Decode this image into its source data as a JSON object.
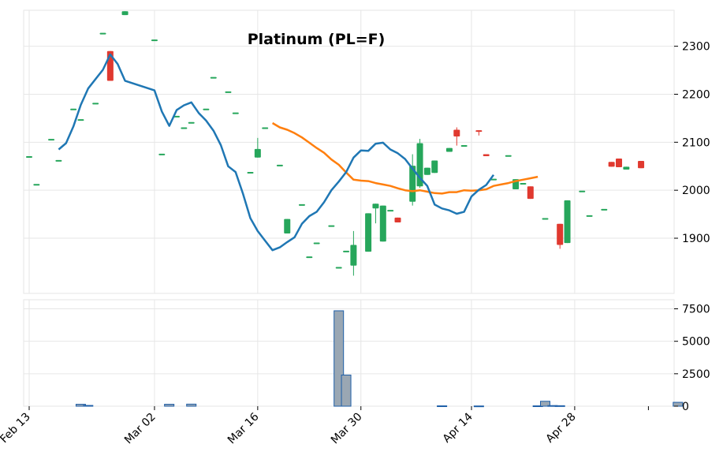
{
  "chart_data": {
    "type": "candlestick",
    "title": "Platinum (PL=F)",
    "x_dates": [
      "Feb 13",
      "Feb 14",
      "Feb 15",
      "Feb 16",
      "Feb 17",
      "Feb 18",
      "Feb 19",
      "Feb 20",
      "Feb 21",
      "Feb 22",
      "Feb 23",
      "Feb 24",
      "Feb 25",
      "Feb 26",
      "Feb 27",
      "Feb 28",
      "Mar 01",
      "Mar 02",
      "Mar 03",
      "Mar 04",
      "Mar 05",
      "Mar 06",
      "Mar 07",
      "Mar 08",
      "Mar 09",
      "Mar 10",
      "Mar 11",
      "Mar 12",
      "Mar 13",
      "Mar 14",
      "Mar 15",
      "Mar 16",
      "Mar 17",
      "Mar 18",
      "Mar 19",
      "Mar 20",
      "Mar 21",
      "Mar 22",
      "Mar 23",
      "Mar 24",
      "Mar 25",
      "Mar 26",
      "Mar 27",
      "Mar 28",
      "Mar 29",
      "Mar 30",
      "Mar 31",
      "Apr 01",
      "Apr 02",
      "Apr 03",
      "Apr 04",
      "Apr 05",
      "Apr 06",
      "Apr 07",
      "Apr 08",
      "Apr 09",
      "Apr 10",
      "Apr 11",
      "Apr 12",
      "Apr 13",
      "Apr 14",
      "Apr 15",
      "Apr 16",
      "Apr 17",
      "Apr 18",
      "Apr 19",
      "Apr 20",
      "Apr 21",
      "Apr 22",
      "Apr 23",
      "Apr 24",
      "Apr 25",
      "Apr 26",
      "Apr 27",
      "Apr 28",
      "Apr 29",
      "Apr 30",
      "May 01",
      "May 02",
      "May 03",
      "May 04",
      "May 05",
      "May 06",
      "May 07",
      "May 08",
      "May 09",
      "May 10",
      "May 11",
      "May 12",
      "May 13",
      "May 14",
      "May 15",
      "May 16",
      "May 17",
      "May 18",
      "May 19"
    ],
    "x_ticks": [
      "Feb 13",
      "Mar 02",
      "Mar 16",
      "Mar 30",
      "Apr 14",
      "Apr 28"
    ],
    "candles": [
      {
        "date": "Feb 13",
        "open": 2071,
        "high": 2071,
        "low": 2071,
        "close": 2071
      },
      {
        "date": "Feb 14",
        "open": 2013,
        "high": 2013,
        "low": 2013,
        "close": 2013
      },
      {
        "date": "Feb 16",
        "open": 2107,
        "high": 2107,
        "low": 2107,
        "close": 2107
      },
      {
        "date": "Feb 17",
        "open": 2063,
        "high": 2063,
        "low": 2063,
        "close": 2063
      },
      {
        "date": "Feb 19",
        "open": 2170,
        "high": 2170,
        "low": 2170,
        "close": 2170
      },
      {
        "date": "Feb 20",
        "open": 2148,
        "high": 2148,
        "low": 2148,
        "close": 2148
      },
      {
        "date": "Feb 22",
        "open": 2182,
        "high": 2182,
        "low": 2182,
        "close": 2182
      },
      {
        "date": "Feb 23",
        "open": 2328,
        "high": 2328,
        "low": 2328,
        "close": 2328
      },
      {
        "date": "Feb 24",
        "open": 2290,
        "high": 2290,
        "low": 2228,
        "close": 2228
      },
      {
        "date": "Feb 26",
        "open": 2365,
        "high": 2373,
        "low": 2365,
        "close": 2373
      },
      {
        "date": "Mar 02",
        "open": 2314,
        "high": 2314,
        "low": 2314,
        "close": 2314
      },
      {
        "date": "Mar 03",
        "open": 2076,
        "high": 2076,
        "low": 2076,
        "close": 2076
      },
      {
        "date": "Mar 05",
        "open": 2155,
        "high": 2155,
        "low": 2155,
        "close": 2155
      },
      {
        "date": "Mar 06",
        "open": 2131,
        "high": 2131,
        "low": 2131,
        "close": 2131
      },
      {
        "date": "Mar 07",
        "open": 2142,
        "high": 2142,
        "low": 2142,
        "close": 2142
      },
      {
        "date": "Mar 09",
        "open": 2170,
        "high": 2170,
        "low": 2170,
        "close": 2170
      },
      {
        "date": "Mar 10",
        "open": 2236,
        "high": 2236,
        "low": 2236,
        "close": 2236
      },
      {
        "date": "Mar 12",
        "open": 2206,
        "high": 2206,
        "low": 2206,
        "close": 2206
      },
      {
        "date": "Mar 13",
        "open": 2162,
        "high": 2162,
        "low": 2162,
        "close": 2162
      },
      {
        "date": "Mar 15",
        "open": 2038,
        "high": 2038,
        "low": 2038,
        "close": 2038
      },
      {
        "date": "Mar 16",
        "open": 2068,
        "high": 2109,
        "low": 2068,
        "close": 2086
      },
      {
        "date": "Mar 17",
        "open": 2131,
        "high": 2131,
        "low": 2131,
        "close": 2131
      },
      {
        "date": "Mar 19",
        "open": 2053,
        "high": 2053,
        "low": 2053,
        "close": 2053
      },
      {
        "date": "Mar 20",
        "open": 1910,
        "high": 1940,
        "low": 1910,
        "close": 1940
      },
      {
        "date": "Mar 22",
        "open": 1971,
        "high": 1971,
        "low": 1971,
        "close": 1971
      },
      {
        "date": "Mar 23",
        "open": 1862,
        "high": 1862,
        "low": 1862,
        "close": 1862
      },
      {
        "date": "Mar 24",
        "open": 1891,
        "high": 1891,
        "low": 1891,
        "close": 1891
      },
      {
        "date": "Mar 26",
        "open": 1927,
        "high": 1927,
        "low": 1927,
        "close": 1927
      },
      {
        "date": "Mar 27",
        "open": 1840,
        "high": 1840,
        "low": 1840,
        "close": 1840
      },
      {
        "date": "Mar 28",
        "open": 1874,
        "high": 1874,
        "low": 1874,
        "close": 1874
      },
      {
        "date": "Mar 29",
        "open": 1843,
        "high": 1915,
        "low": 1822,
        "close": 1886
      },
      {
        "date": "Mar 31",
        "open": 1872,
        "high": 1952,
        "low": 1872,
        "close": 1952
      },
      {
        "date": "Apr 01",
        "open": 1962,
        "high": 1972,
        "low": 1931,
        "close": 1972
      },
      {
        "date": "Apr 02",
        "open": 1893,
        "high": 1968,
        "low": 1893,
        "close": 1968
      },
      {
        "date": "Apr 03",
        "open": 1959,
        "high": 1959,
        "low": 1959,
        "close": 1959
      },
      {
        "date": "Apr 04",
        "open": 1943,
        "high": 1943,
        "low": 1933,
        "close": 1933
      },
      {
        "date": "Apr 06",
        "open": 1976,
        "high": 2075,
        "low": 1968,
        "close": 2051
      },
      {
        "date": "Apr 07",
        "open": 2008,
        "high": 2107,
        "low": 2005,
        "close": 2098
      },
      {
        "date": "Apr 08",
        "open": 2032,
        "high": 2047,
        "low": 2032,
        "close": 2047
      },
      {
        "date": "Apr 09",
        "open": 2036,
        "high": 2062,
        "low": 2036,
        "close": 2062
      },
      {
        "date": "Apr 11",
        "open": 2080,
        "high": 2088,
        "low": 2080,
        "close": 2088
      },
      {
        "date": "Apr 12",
        "open": 2126,
        "high": 2131,
        "low": 2093,
        "close": 2112
      },
      {
        "date": "Apr 13",
        "open": 2094,
        "high": 2094,
        "low": 2094,
        "close": 2094
      },
      {
        "date": "Apr 15",
        "open": 2125,
        "high": 2125,
        "low": 2114,
        "close": 2124
      },
      {
        "date": "Apr 16",
        "open": 2075,
        "high": 2075,
        "low": 2071,
        "close": 2071
      },
      {
        "date": "Apr 17",
        "open": 2024,
        "high": 2024,
        "low": 2024,
        "close": 2024
      },
      {
        "date": "Apr 19",
        "open": 2073,
        "high": 2073,
        "low": 2073,
        "close": 2073
      },
      {
        "date": "Apr 20",
        "open": 2002,
        "high": 2023,
        "low": 2002,
        "close": 2023
      },
      {
        "date": "Apr 21",
        "open": 2015,
        "high": 2015,
        "low": 2015,
        "close": 2015
      },
      {
        "date": "Apr 22",
        "open": 2008,
        "high": 2008,
        "low": 1982,
        "close": 1982
      },
      {
        "date": "Apr 24",
        "open": 1942,
        "high": 1942,
        "low": 1942,
        "close": 1942
      },
      {
        "date": "Apr 26",
        "open": 1930,
        "high": 1930,
        "low": 1878,
        "close": 1886
      },
      {
        "date": "Apr 27",
        "open": 1890,
        "high": 1979,
        "low": 1890,
        "close": 1979
      },
      {
        "date": "Apr 29",
        "open": 1999,
        "high": 1999,
        "low": 1999,
        "close": 1999
      },
      {
        "date": "Apr 30",
        "open": 1948,
        "high": 1948,
        "low": 1948,
        "close": 1948
      },
      {
        "date": "May 02",
        "open": 1961,
        "high": 1961,
        "low": 1961,
        "close": 1961
      },
      {
        "date": "May 03",
        "open": 2059,
        "high": 2059,
        "low": 2049,
        "close": 2049
      },
      {
        "date": "May 04",
        "open": 2066,
        "high": 2066,
        "low": 2048,
        "close": 2048
      },
      {
        "date": "May 05",
        "open": 2043,
        "high": 2049,
        "low": 2043,
        "close": 2049
      },
      {
        "date": "May 07",
        "open": 2061,
        "high": 2061,
        "low": 2046,
        "close": 2046
      }
    ],
    "ma_short": [
      {
        "date": "Feb 17",
        "value": 2085
      },
      {
        "date": "Feb 18",
        "value": 2098
      },
      {
        "date": "Feb 19",
        "value": 2133
      },
      {
        "date": "Feb 20",
        "value": 2178
      },
      {
        "date": "Feb 21",
        "value": 2212
      },
      {
        "date": "Feb 23",
        "value": 2251
      },
      {
        "date": "Feb 24",
        "value": 2283
      },
      {
        "date": "Feb 25",
        "value": 2263
      },
      {
        "date": "Feb 26",
        "value": 2228
      },
      {
        "date": "Mar 02",
        "value": 2208
      },
      {
        "date": "Mar 03",
        "value": 2164
      },
      {
        "date": "Mar 04",
        "value": 2134
      },
      {
        "date": "Mar 05",
        "value": 2167
      },
      {
        "date": "Mar 06",
        "value": 2177
      },
      {
        "date": "Mar 07",
        "value": 2183
      },
      {
        "date": "Mar 08",
        "value": 2161
      },
      {
        "date": "Mar 09",
        "value": 2145
      },
      {
        "date": "Mar 10",
        "value": 2124
      },
      {
        "date": "Mar 11",
        "value": 2094
      },
      {
        "date": "Mar 12",
        "value": 2050
      },
      {
        "date": "Mar 13",
        "value": 2038
      },
      {
        "date": "Mar 14",
        "value": 1993
      },
      {
        "date": "Mar 15",
        "value": 1942
      },
      {
        "date": "Mar 16",
        "value": 1915
      },
      {
        "date": "Mar 17",
        "value": 1895
      },
      {
        "date": "Mar 18",
        "value": 1875
      },
      {
        "date": "Mar 19",
        "value": 1881
      },
      {
        "date": "Mar 20",
        "value": 1892
      },
      {
        "date": "Mar 21",
        "value": 1902
      },
      {
        "date": "Mar 22",
        "value": 1930
      },
      {
        "date": "Mar 23",
        "value": 1946
      },
      {
        "date": "Mar 24",
        "value": 1955
      },
      {
        "date": "Mar 25",
        "value": 1975
      },
      {
        "date": "Mar 26",
        "value": 2000
      },
      {
        "date": "Mar 27",
        "value": 2018
      },
      {
        "date": "Mar 28",
        "value": 2038
      },
      {
        "date": "Mar 29",
        "value": 2068
      },
      {
        "date": "Mar 30",
        "value": 2083
      },
      {
        "date": "Mar 31",
        "value": 2082
      },
      {
        "date": "Apr 01",
        "value": 2097
      },
      {
        "date": "Apr 02",
        "value": 2099
      },
      {
        "date": "Apr 03",
        "value": 2085
      },
      {
        "date": "Apr 04",
        "value": 2077
      },
      {
        "date": "Apr 05",
        "value": 2065
      },
      {
        "date": "Apr 06",
        "value": 2045
      },
      {
        "date": "Apr 07",
        "value": 2026
      },
      {
        "date": "Apr 08",
        "value": 2009
      },
      {
        "date": "Apr 09",
        "value": 1970
      },
      {
        "date": "Apr 10",
        "value": 1962
      },
      {
        "date": "Apr 11",
        "value": 1958
      },
      {
        "date": "Apr 12",
        "value": 1951
      },
      {
        "date": "Apr 13",
        "value": 1955
      },
      {
        "date": "Apr 14",
        "value": 1987
      },
      {
        "date": "Apr 15",
        "value": 2001
      },
      {
        "date": "Apr 16",
        "value": 2011
      },
      {
        "date": "Apr 17",
        "value": 2032
      }
    ],
    "ma_long": [
      {
        "date": "Mar 18",
        "value": 2140
      },
      {
        "date": "Mar 19",
        "value": 2131
      },
      {
        "date": "Mar 20",
        "value": 2126
      },
      {
        "date": "Mar 21",
        "value": 2119
      },
      {
        "date": "Mar 22",
        "value": 2110
      },
      {
        "date": "Mar 23",
        "value": 2099
      },
      {
        "date": "Mar 24",
        "value": 2088
      },
      {
        "date": "Mar 25",
        "value": 2078
      },
      {
        "date": "Mar 26",
        "value": 2064
      },
      {
        "date": "Mar 27",
        "value": 2053
      },
      {
        "date": "Mar 28",
        "value": 2037
      },
      {
        "date": "Mar 29",
        "value": 2022
      },
      {
        "date": "Mar 30",
        "value": 2020
      },
      {
        "date": "Mar 31",
        "value": 2019
      },
      {
        "date": "Apr 01",
        "value": 2015
      },
      {
        "date": "Apr 02",
        "value": 2012
      },
      {
        "date": "Apr 03",
        "value": 2009
      },
      {
        "date": "Apr 04",
        "value": 2004
      },
      {
        "date": "Apr 05",
        "value": 2000
      },
      {
        "date": "Apr 06",
        "value": 1998
      },
      {
        "date": "Apr 07",
        "value": 2000
      },
      {
        "date": "Apr 08",
        "value": 1997
      },
      {
        "date": "Apr 09",
        "value": 1994
      },
      {
        "date": "Apr 10",
        "value": 1993
      },
      {
        "date": "Apr 11",
        "value": 1996
      },
      {
        "date": "Apr 12",
        "value": 1996
      },
      {
        "date": "Apr 13",
        "value": 2000
      },
      {
        "date": "Apr 14",
        "value": 1999
      },
      {
        "date": "Apr 15",
        "value": 2000
      },
      {
        "date": "Apr 16",
        "value": 2002
      },
      {
        "date": "Apr 17",
        "value": 2009
      },
      {
        "date": "Apr 18",
        "value": 2012
      },
      {
        "date": "Apr 19",
        "value": 2015
      },
      {
        "date": "Apr 20",
        "value": 2019
      },
      {
        "date": "Apr 21",
        "value": 2022
      },
      {
        "date": "Apr 22",
        "value": 2025
      },
      {
        "date": "Apr 23",
        "value": 2028
      }
    ],
    "volume": [
      {
        "date": "Feb 20",
        "value": 150
      },
      {
        "date": "Feb 21",
        "value": 60
      },
      {
        "date": "Mar 04",
        "value": 150
      },
      {
        "date": "Mar 07",
        "value": 160
      },
      {
        "date": "Mar 27",
        "value": 7350
      },
      {
        "date": "Mar 28",
        "value": 2400
      },
      {
        "date": "Apr 10",
        "value": 30
      },
      {
        "date": "Apr 15",
        "value": 20
      },
      {
        "date": "Apr 23",
        "value": 30
      },
      {
        "date": "Apr 24",
        "value": 380
      },
      {
        "date": "Apr 25",
        "value": 50
      },
      {
        "date": "Apr 26",
        "value": 40
      },
      {
        "date": "May 12",
        "value": 300
      }
    ],
    "price_axis": {
      "ylim": [
        1785,
        2375
      ],
      "ticks": [
        "1900",
        "2000",
        "2100",
        "2200",
        "2300"
      ]
    },
    "volume_axis": {
      "ylim": [
        0,
        8200
      ],
      "ticks": [
        "0",
        "2500",
        "5000",
        "7500"
      ]
    },
    "colors": {
      "up": "#26a65b",
      "down": "#e0392f",
      "ma_short": "#1f77b4",
      "ma_long": "#ff7f0e",
      "volume_fill": "#9aa7b3",
      "volume_edge": "#1f5fa8"
    },
    "grid": true
  }
}
